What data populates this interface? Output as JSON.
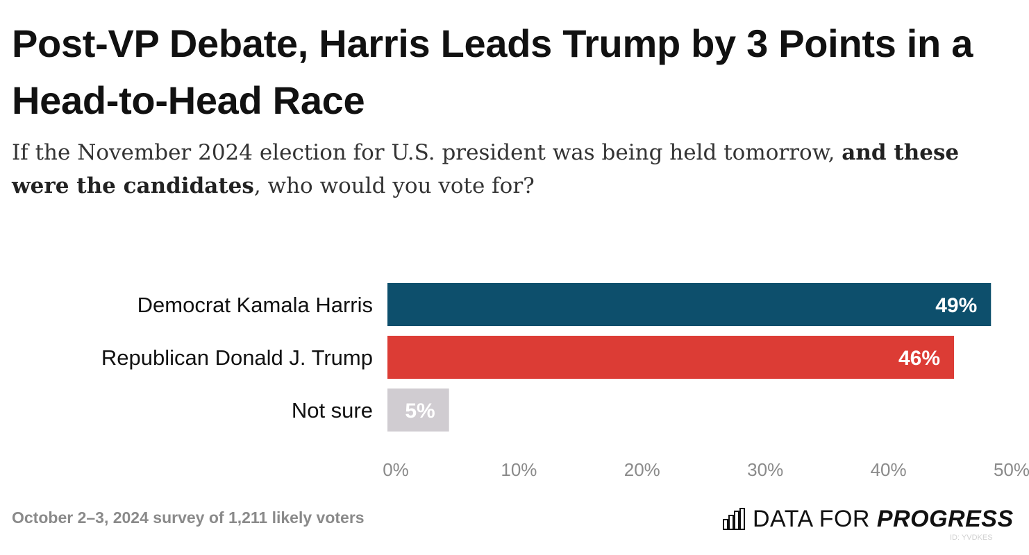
{
  "title": "Post-VP Debate, Harris Leads Trump by 3 Points in a Head-to-Head Race",
  "subtitle": {
    "part1": "If the November 2024 election for U.S. president was being held tomorrow, ",
    "bold": "and these were the candidates",
    "part2": ", who would you vote for?"
  },
  "chart_data": {
    "type": "bar",
    "orientation": "horizontal",
    "categories": [
      "Democrat Kamala Harris",
      "Republican Donald J. Trump",
      "Not sure"
    ],
    "values": [
      49,
      46,
      5
    ],
    "value_labels": [
      "49%",
      "46%",
      "5%"
    ],
    "colors": [
      "#0d4f6c",
      "#dc3c35",
      "#d0ccd1"
    ],
    "xlim": [
      0,
      50
    ],
    "x_ticks": [
      0,
      10,
      20,
      30,
      40,
      50
    ],
    "x_tick_labels": [
      "0%",
      "10%",
      "20%",
      "30%",
      "40%",
      "50%"
    ],
    "grid": false,
    "legend": "none"
  },
  "footer": {
    "note": "October 2–3, 2024 survey of 1,211 likely voters",
    "logo_light": "DATA FOR ",
    "logo_bold": "PROGRESS",
    "chart_id": "ID: YVDKES"
  }
}
